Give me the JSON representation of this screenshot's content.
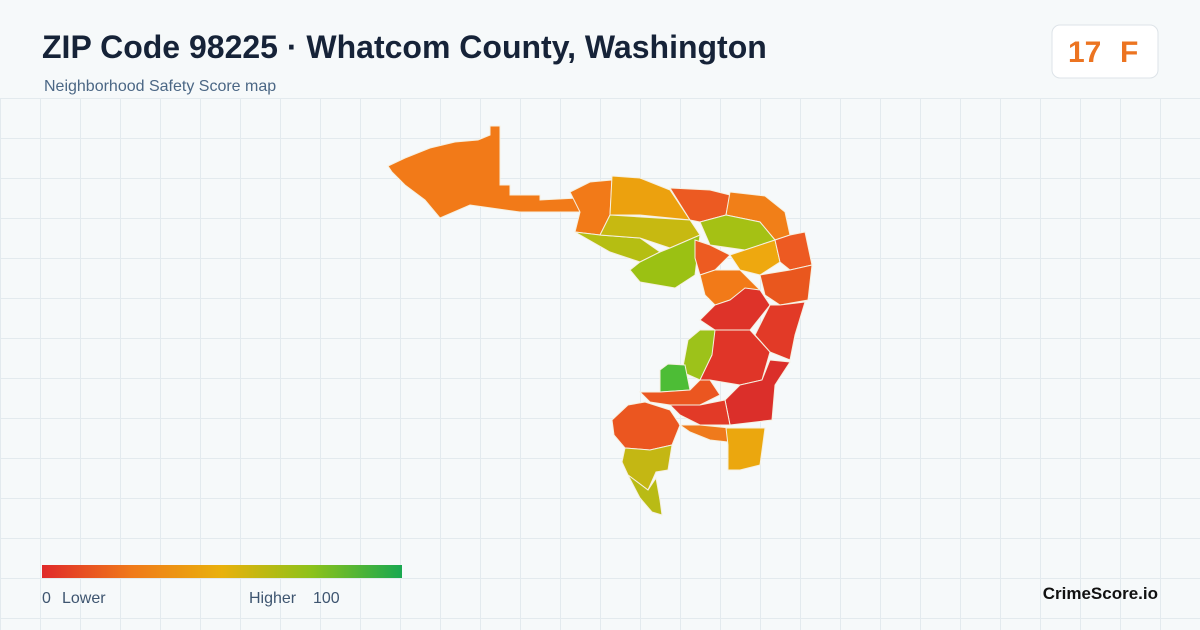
{
  "header": {
    "title": "ZIP Code 98225 · Whatcom County, Washington",
    "subtitle": "Neighborhood Safety Score map"
  },
  "score": {
    "value": "17",
    "grade": "F"
  },
  "legend": {
    "min": "0",
    "min_label": "Lower",
    "max_label": "Higher",
    "max": "100"
  },
  "brand": "CrimeScore.io"
}
